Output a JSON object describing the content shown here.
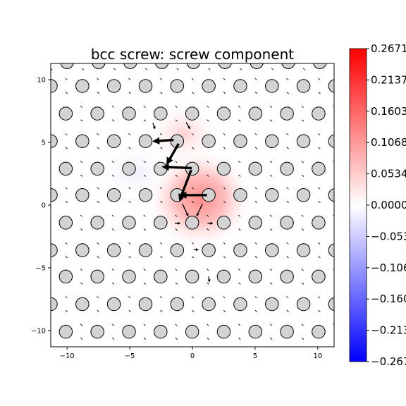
{
  "chart_data": {
    "type": "heatmap",
    "title": "bcc screw: screw component",
    "xlabel": "",
    "ylabel": "",
    "xlim": [
      -11.3,
      11.3
    ],
    "ylim": [
      -11.3,
      11.3
    ],
    "xticks": [
      -10,
      -5,
      0,
      5,
      10
    ],
    "yticks": [
      -10,
      -5,
      0,
      5,
      10
    ],
    "xtick_labels": [
      "−10",
      "−5",
      "0",
      "5",
      "10"
    ],
    "ytick_labels": [
      "−10",
      "−5",
      "0",
      "5",
      "10"
    ],
    "grid": false,
    "colormap": "bwr",
    "colorbar": {
      "vmin": -0.2671,
      "vmax": 0.2671,
      "ticks": [
        0.2671,
        0.2137,
        0.1603,
        0.1068,
        0.0534,
        0.0,
        -0.0534,
        -0.1068,
        -0.1603,
        -0.2137,
        -0.2671
      ],
      "tick_labels": [
        "0.2671",
        "0.2137",
        "0.1603",
        "0.1068",
        "0.0534",
        "0.0000",
        "−0.0534",
        "−0.1068",
        "−0.1603",
        "−0.2137",
        "−0.2671"
      ]
    },
    "atom_rows": [
      {
        "y": 11.4,
        "x0": -10.0,
        "n": 9
      },
      {
        "y": 9.5,
        "x0": -11.3,
        "n": 10
      },
      {
        "y": 7.3,
        "x0": -10.1,
        "n": 9
      },
      {
        "y": 5.1,
        "x0": -11.3,
        "n": 10
      },
      {
        "y": 2.9,
        "x0": -10.1,
        "n": 9
      },
      {
        "y": 0.8,
        "x0": -11.3,
        "n": 10
      },
      {
        "y": -1.4,
        "x0": -10.1,
        "n": 9
      },
      {
        "y": -3.6,
        "x0": -11.3,
        "n": 10
      },
      {
        "y": -5.7,
        "x0": -10.1,
        "n": 9
      },
      {
        "y": -7.9,
        "x0": -11.3,
        "n": 10
      },
      {
        "y": -10.1,
        "x0": -10.1,
        "n": 9
      }
    ],
    "atom_spacing": 2.52,
    "strong_arrows": [
      {
        "from": [
          1.15,
          0.8
        ],
        "to": [
          -0.9,
          0.8
        ]
      },
      {
        "from": [
          -0.1,
          2.8
        ],
        "to": [
          -1.0,
          0.45
        ]
      },
      {
        "from": [
          -0.05,
          2.95
        ],
        "to": [
          -2.3,
          3.05
        ]
      },
      {
        "from": [
          -1.1,
          4.9
        ],
        "to": [
          -2.0,
          3.35
        ]
      },
      {
        "from": [
          -1.5,
          5.2
        ],
        "to": [
          -3.05,
          5.1
        ]
      },
      {
        "from": [
          -0.8,
          0.1
        ],
        "to": [
          -0.35,
          -0.85
        ]
      },
      {
        "from": [
          0.8,
          0.1
        ],
        "to": [
          0.35,
          -0.85
        ]
      },
      {
        "from": [
          1.2,
          -1.45
        ],
        "to": [
          1.6,
          -1.45
        ]
      },
      {
        "from": [
          -1.4,
          -1.45
        ],
        "to": [
          -1.0,
          -1.45
        ]
      },
      {
        "from": [
          -0.5,
          6.6
        ],
        "to": [
          -0.2,
          6.1
        ]
      },
      {
        "from": [
          -3.15,
          6.55
        ],
        "to": [
          -3.0,
          6.1
        ]
      },
      {
        "from": [
          0.1,
          -3.55
        ],
        "to": [
          0.45,
          -3.55
        ]
      },
      {
        "from": [
          1.3,
          -5.7
        ],
        "to": [
          1.35,
          -6.1
        ]
      }
    ],
    "density_peak": {
      "x": 0.6,
      "y": 0.5,
      "value": 0.12
    },
    "density_lobes": [
      {
        "x": -0.7,
        "y": 5.7,
        "value": 0.06
      },
      {
        "x": -4.6,
        "y": 2.6,
        "value": -0.018
      }
    ]
  }
}
